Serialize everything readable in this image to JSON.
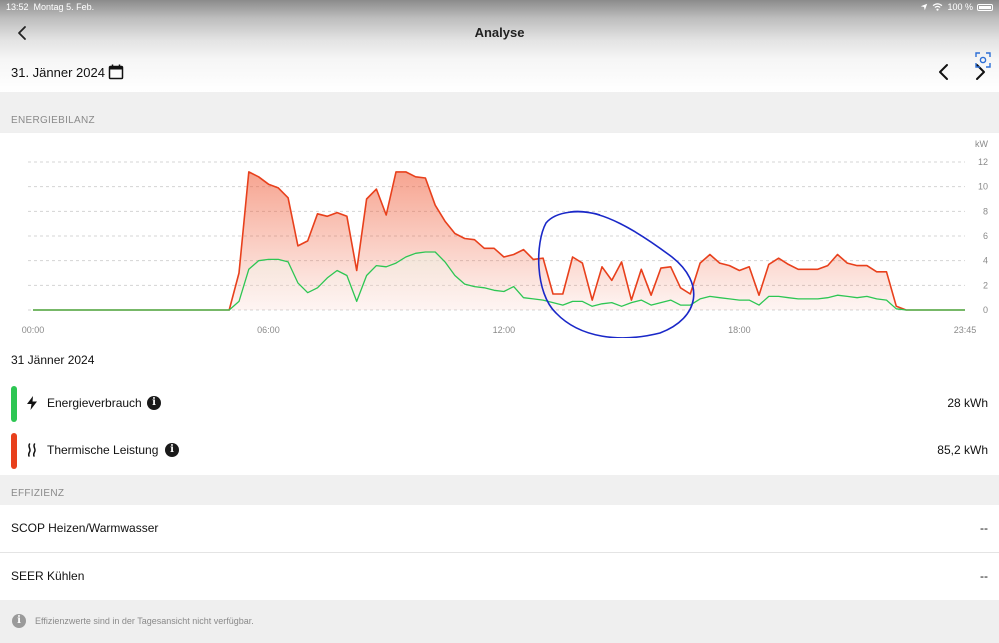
{
  "status_bar": {
    "time": "13:52",
    "date": "Montag 5. Feb.",
    "battery": "100 %"
  },
  "nav": {
    "title": "Analyse"
  },
  "date_selector": {
    "date": "31. Jänner 2024"
  },
  "sections": {
    "energy_balance": "ENERGIEBILANZ",
    "efficiency": "EFFIZIENZ"
  },
  "chart_data": {
    "type": "area",
    "unit_label": "kW",
    "x_ticks": [
      "00:00",
      "06:00",
      "12:00",
      "18:00",
      "23:45"
    ],
    "y_ticks": [
      0,
      2,
      4,
      6,
      8,
      10,
      12
    ],
    "ylim": [
      0,
      12
    ],
    "grid": true,
    "x": [
      "00:00",
      "00:30",
      "01:00",
      "01:30",
      "02:00",
      "02:30",
      "03:00",
      "03:30",
      "04:00",
      "04:30",
      "05:00",
      "05:15",
      "05:30",
      "05:45",
      "06:00",
      "06:15",
      "06:30",
      "06:45",
      "07:00",
      "07:15",
      "07:30",
      "07:45",
      "08:00",
      "08:15",
      "08:30",
      "08:45",
      "09:00",
      "09:15",
      "09:30",
      "09:45",
      "10:00",
      "10:15",
      "10:30",
      "10:45",
      "11:00",
      "11:15",
      "11:30",
      "11:45",
      "12:00",
      "12:15",
      "12:30",
      "12:45",
      "13:00",
      "13:15",
      "13:30",
      "13:45",
      "14:00",
      "14:15",
      "14:30",
      "14:45",
      "15:00",
      "15:15",
      "15:30",
      "15:45",
      "16:00",
      "16:15",
      "16:30",
      "16:45",
      "17:00",
      "17:15",
      "17:30",
      "17:45",
      "18:00",
      "18:15",
      "18:30",
      "18:45",
      "19:00",
      "19:15",
      "19:30",
      "19:45",
      "20:00",
      "20:15",
      "20:30",
      "20:45",
      "21:00",
      "21:15",
      "21:30",
      "21:45",
      "22:00",
      "22:15",
      "22:30",
      "22:45",
      "23:00",
      "23:15",
      "23:45"
    ],
    "series": [
      {
        "name": "Thermische Leistung",
        "color": "#e8401c",
        "values": [
          0,
          0,
          0,
          0,
          0,
          0,
          0,
          0,
          0,
          0,
          0,
          3,
          11.2,
          10.8,
          10.2,
          9.9,
          9.1,
          5.2,
          5.6,
          7.8,
          7.6,
          7.9,
          7.6,
          3.2,
          9.0,
          9.8,
          7.7,
          11.2,
          11.2,
          10.8,
          10.7,
          8.5,
          7.2,
          6.2,
          5.8,
          5.7,
          5.0,
          5.0,
          4.3,
          4.5,
          4.9,
          4.1,
          4.2,
          1.3,
          1.3,
          4.3,
          3.8,
          0.8,
          3.5,
          2.4,
          3.9,
          0.8,
          3.3,
          1.2,
          3.4,
          3.5,
          1.8,
          1.3,
          3.8,
          4.5,
          3.8,
          3.6,
          3.2,
          3.5,
          1.2,
          3.7,
          4.2,
          3.7,
          3.3,
          3.3,
          3.3,
          3.6,
          4.5,
          3.8,
          3.6,
          3.6,
          3.1,
          3.1,
          0.3,
          0,
          0,
          0,
          0,
          0,
          0
        ]
      },
      {
        "name": "Energieverbrauch",
        "color": "#2dc653",
        "values": [
          0,
          0,
          0,
          0,
          0,
          0,
          0,
          0,
          0,
          0,
          0,
          0.7,
          3.3,
          4.0,
          4.1,
          4.1,
          3.9,
          2.2,
          1.4,
          1.8,
          2.6,
          3.2,
          2.8,
          0.7,
          2.8,
          3.6,
          3.5,
          3.8,
          4.3,
          4.6,
          4.7,
          4.7,
          3.9,
          2.8,
          2.1,
          1.9,
          1.8,
          1.6,
          1.5,
          1.9,
          1.0,
          0.9,
          0.8,
          0.6,
          0.4,
          0.7,
          0.7,
          0.3,
          0.5,
          0.6,
          0.3,
          0.6,
          0.8,
          0.4,
          0.6,
          0.8,
          0.4,
          0.4,
          0.9,
          1.1,
          1.0,
          0.9,
          0.8,
          0.8,
          0.4,
          1.1,
          1.1,
          1.0,
          0.9,
          0.9,
          0.9,
          1.0,
          1.2,
          1.1,
          1.0,
          1.1,
          0.9,
          0.8,
          0.1,
          0,
          0,
          0,
          0,
          0,
          0
        ]
      }
    ]
  },
  "summary": {
    "day_label": "31 Jänner 2024",
    "rows": [
      {
        "label": "Energieverbrauch",
        "value": "28 kWh",
        "color": "#2dc653",
        "icon": "bolt-icon"
      },
      {
        "label": "Thermische Leistung",
        "value": "85,2 kWh",
        "color": "#e8401c",
        "icon": "heat-icon"
      }
    ]
  },
  "efficiency": {
    "rows": [
      {
        "label": "SCOP Heizen/Warmwasser",
        "value": "--"
      },
      {
        "label": "SEER Kühlen",
        "value": "--"
      }
    ]
  },
  "footnote": {
    "icon_glyph": "i",
    "text": "Effizienzwerte sind in der Tagesansicht nicht verfügbar."
  }
}
